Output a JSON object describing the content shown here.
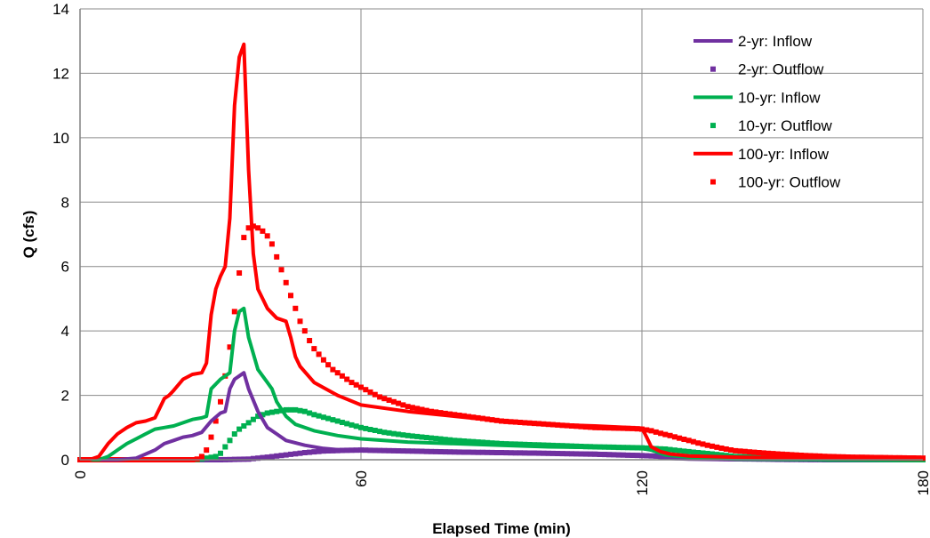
{
  "chart_data": {
    "type": "line",
    "xlabel": "Elapsed Time (min)",
    "ylabel": "Q (cfs)",
    "xlim": [
      0,
      180
    ],
    "ylim": [
      0,
      14
    ],
    "x_ticks": [
      0,
      60,
      120,
      180
    ],
    "y_ticks": [
      0,
      2,
      4,
      6,
      8,
      10,
      12,
      14
    ],
    "grid": true,
    "legend_position": "top-right",
    "series": [
      {
        "name": "2-yr: Inflow",
        "style": "line",
        "color": "#7030a0",
        "x": [
          0,
          8,
          12,
          16,
          18,
          20,
          22,
          24,
          26,
          28,
          30,
          31,
          32,
          33,
          34,
          35,
          36,
          38,
          40,
          42,
          44,
          48,
          52,
          56,
          60,
          70,
          80,
          90,
          100,
          110,
          120,
          125,
          130,
          140,
          160,
          180
        ],
        "y": [
          0,
          0,
          0.05,
          0.3,
          0.5,
          0.6,
          0.7,
          0.75,
          0.85,
          1.2,
          1.45,
          1.5,
          2.2,
          2.5,
          2.6,
          2.7,
          2.2,
          1.5,
          1.0,
          0.8,
          0.6,
          0.45,
          0.35,
          0.3,
          0.28,
          0.25,
          0.23,
          0.21,
          0.2,
          0.2,
          0.15,
          0.05,
          0.02,
          0,
          0,
          0
        ]
      },
      {
        "name": "2-yr: Outflow",
        "style": "markers",
        "color": "#7030a0",
        "x": [
          0,
          10,
          20,
          30,
          36,
          40,
          44,
          48,
          52,
          56,
          60,
          70,
          80,
          90,
          100,
          110,
          120,
          125,
          130,
          140,
          150,
          160,
          170,
          180
        ],
        "y": [
          0,
          0,
          0,
          0,
          0.02,
          0.08,
          0.15,
          0.22,
          0.27,
          0.29,
          0.3,
          0.27,
          0.24,
          0.22,
          0.2,
          0.17,
          0.13,
          0.1,
          0.06,
          0.03,
          0.01,
          0,
          0,
          0
        ]
      },
      {
        "name": "10-yr: Inflow",
        "style": "line",
        "color": "#00b050",
        "x": [
          0,
          4,
          6,
          8,
          10,
          12,
          14,
          16,
          18,
          20,
          22,
          24,
          26,
          27,
          28,
          30,
          31,
          32,
          33,
          34,
          35,
          36,
          38,
          40,
          41,
          42,
          44,
          46,
          50,
          55,
          60,
          70,
          80,
          90,
          100,
          110,
          120,
          122,
          125,
          130,
          140,
          160,
          180
        ],
        "y": [
          0,
          0,
          0.1,
          0.3,
          0.5,
          0.65,
          0.8,
          0.95,
          1.0,
          1.05,
          1.15,
          1.25,
          1.3,
          1.35,
          2.2,
          2.5,
          2.6,
          2.7,
          4.0,
          4.6,
          4.7,
          3.8,
          2.8,
          2.4,
          2.2,
          1.8,
          1.35,
          1.1,
          0.9,
          0.75,
          0.65,
          0.55,
          0.5,
          0.45,
          0.4,
          0.38,
          0.35,
          0.3,
          0.15,
          0.08,
          0.02,
          0,
          0
        ]
      },
      {
        "name": "10-yr: Outflow",
        "style": "markers",
        "color": "#00b050",
        "x": [
          0,
          10,
          20,
          25,
          27,
          29,
          30,
          31,
          32,
          33,
          34,
          35,
          36,
          37,
          38,
          40,
          42,
          44,
          46,
          48,
          50,
          55,
          60,
          65,
          70,
          80,
          90,
          100,
          110,
          120,
          125,
          130,
          135,
          140,
          150,
          160,
          170,
          180
        ],
        "y": [
          0,
          0,
          0,
          0,
          0.05,
          0.1,
          0.2,
          0.4,
          0.6,
          0.8,
          0.95,
          1.05,
          1.15,
          1.25,
          1.35,
          1.45,
          1.5,
          1.55,
          1.55,
          1.5,
          1.4,
          1.2,
          1.0,
          0.85,
          0.75,
          0.6,
          0.5,
          0.45,
          0.4,
          0.37,
          0.33,
          0.25,
          0.18,
          0.1,
          0.05,
          0.02,
          0.01,
          0
        ]
      },
      {
        "name": "100-yr: Inflow",
        "style": "line",
        "color": "#ff0000",
        "x": [
          0,
          2,
          4,
          6,
          8,
          10,
          12,
          14,
          16,
          18,
          19,
          20,
          22,
          24,
          26,
          27,
          28,
          29,
          30,
          31,
          32,
          33,
          34,
          35,
          36,
          37,
          38,
          39,
          40,
          42,
          44,
          45,
          46,
          47,
          50,
          55,
          60,
          70,
          80,
          90,
          100,
          110,
          120,
          121,
          122,
          124,
          126,
          130,
          140,
          160,
          180
        ],
        "y": [
          0,
          0,
          0.1,
          0.5,
          0.8,
          1.0,
          1.15,
          1.2,
          1.3,
          1.9,
          2.0,
          2.15,
          2.5,
          2.65,
          2.7,
          3.0,
          4.5,
          5.3,
          5.7,
          6.0,
          7.5,
          11.0,
          12.5,
          12.9,
          9.0,
          6.4,
          5.3,
          5.0,
          4.7,
          4.4,
          4.3,
          3.8,
          3.2,
          2.9,
          2.4,
          2.0,
          1.7,
          1.5,
          1.35,
          1.2,
          1.1,
          1.05,
          0.98,
          0.7,
          0.4,
          0.25,
          0.18,
          0.12,
          0.08,
          0.04,
          0.02
        ]
      },
      {
        "name": "100-yr: Outflow",
        "style": "markers",
        "color": "#ff0000",
        "x": [
          0,
          5,
          10,
          15,
          20,
          24,
          25,
          26,
          27,
          28,
          29,
          30,
          31,
          32,
          33,
          34,
          35,
          36,
          37,
          38,
          39,
          40,
          41,
          42,
          43,
          44,
          45,
          46,
          47,
          48,
          49,
          50,
          52,
          54,
          56,
          58,
          60,
          62,
          64,
          66,
          68,
          70,
          75,
          80,
          85,
          90,
          95,
          100,
          105,
          110,
          115,
          118,
          120,
          122,
          124,
          126,
          128,
          130,
          132,
          134,
          136,
          138,
          140,
          145,
          150,
          155,
          160,
          165,
          170,
          175,
          180
        ],
        "y": [
          0,
          0,
          0,
          0,
          0,
          0,
          0.02,
          0.1,
          0.3,
          0.7,
          1.2,
          1.8,
          2.6,
          3.5,
          4.6,
          5.8,
          6.9,
          7.2,
          7.25,
          7.2,
          7.1,
          6.95,
          6.7,
          6.3,
          5.9,
          5.5,
          5.1,
          4.7,
          4.3,
          4.0,
          3.7,
          3.45,
          3.1,
          2.8,
          2.6,
          2.4,
          2.25,
          2.1,
          1.95,
          1.85,
          1.75,
          1.65,
          1.5,
          1.4,
          1.3,
          1.2,
          1.15,
          1.1,
          1.05,
          1.0,
          0.98,
          0.97,
          0.95,
          0.9,
          0.82,
          0.75,
          0.67,
          0.6,
          0.52,
          0.45,
          0.39,
          0.33,
          0.28,
          0.22,
          0.17,
          0.13,
          0.1,
          0.08,
          0.07,
          0.06,
          0.05
        ]
      }
    ]
  }
}
